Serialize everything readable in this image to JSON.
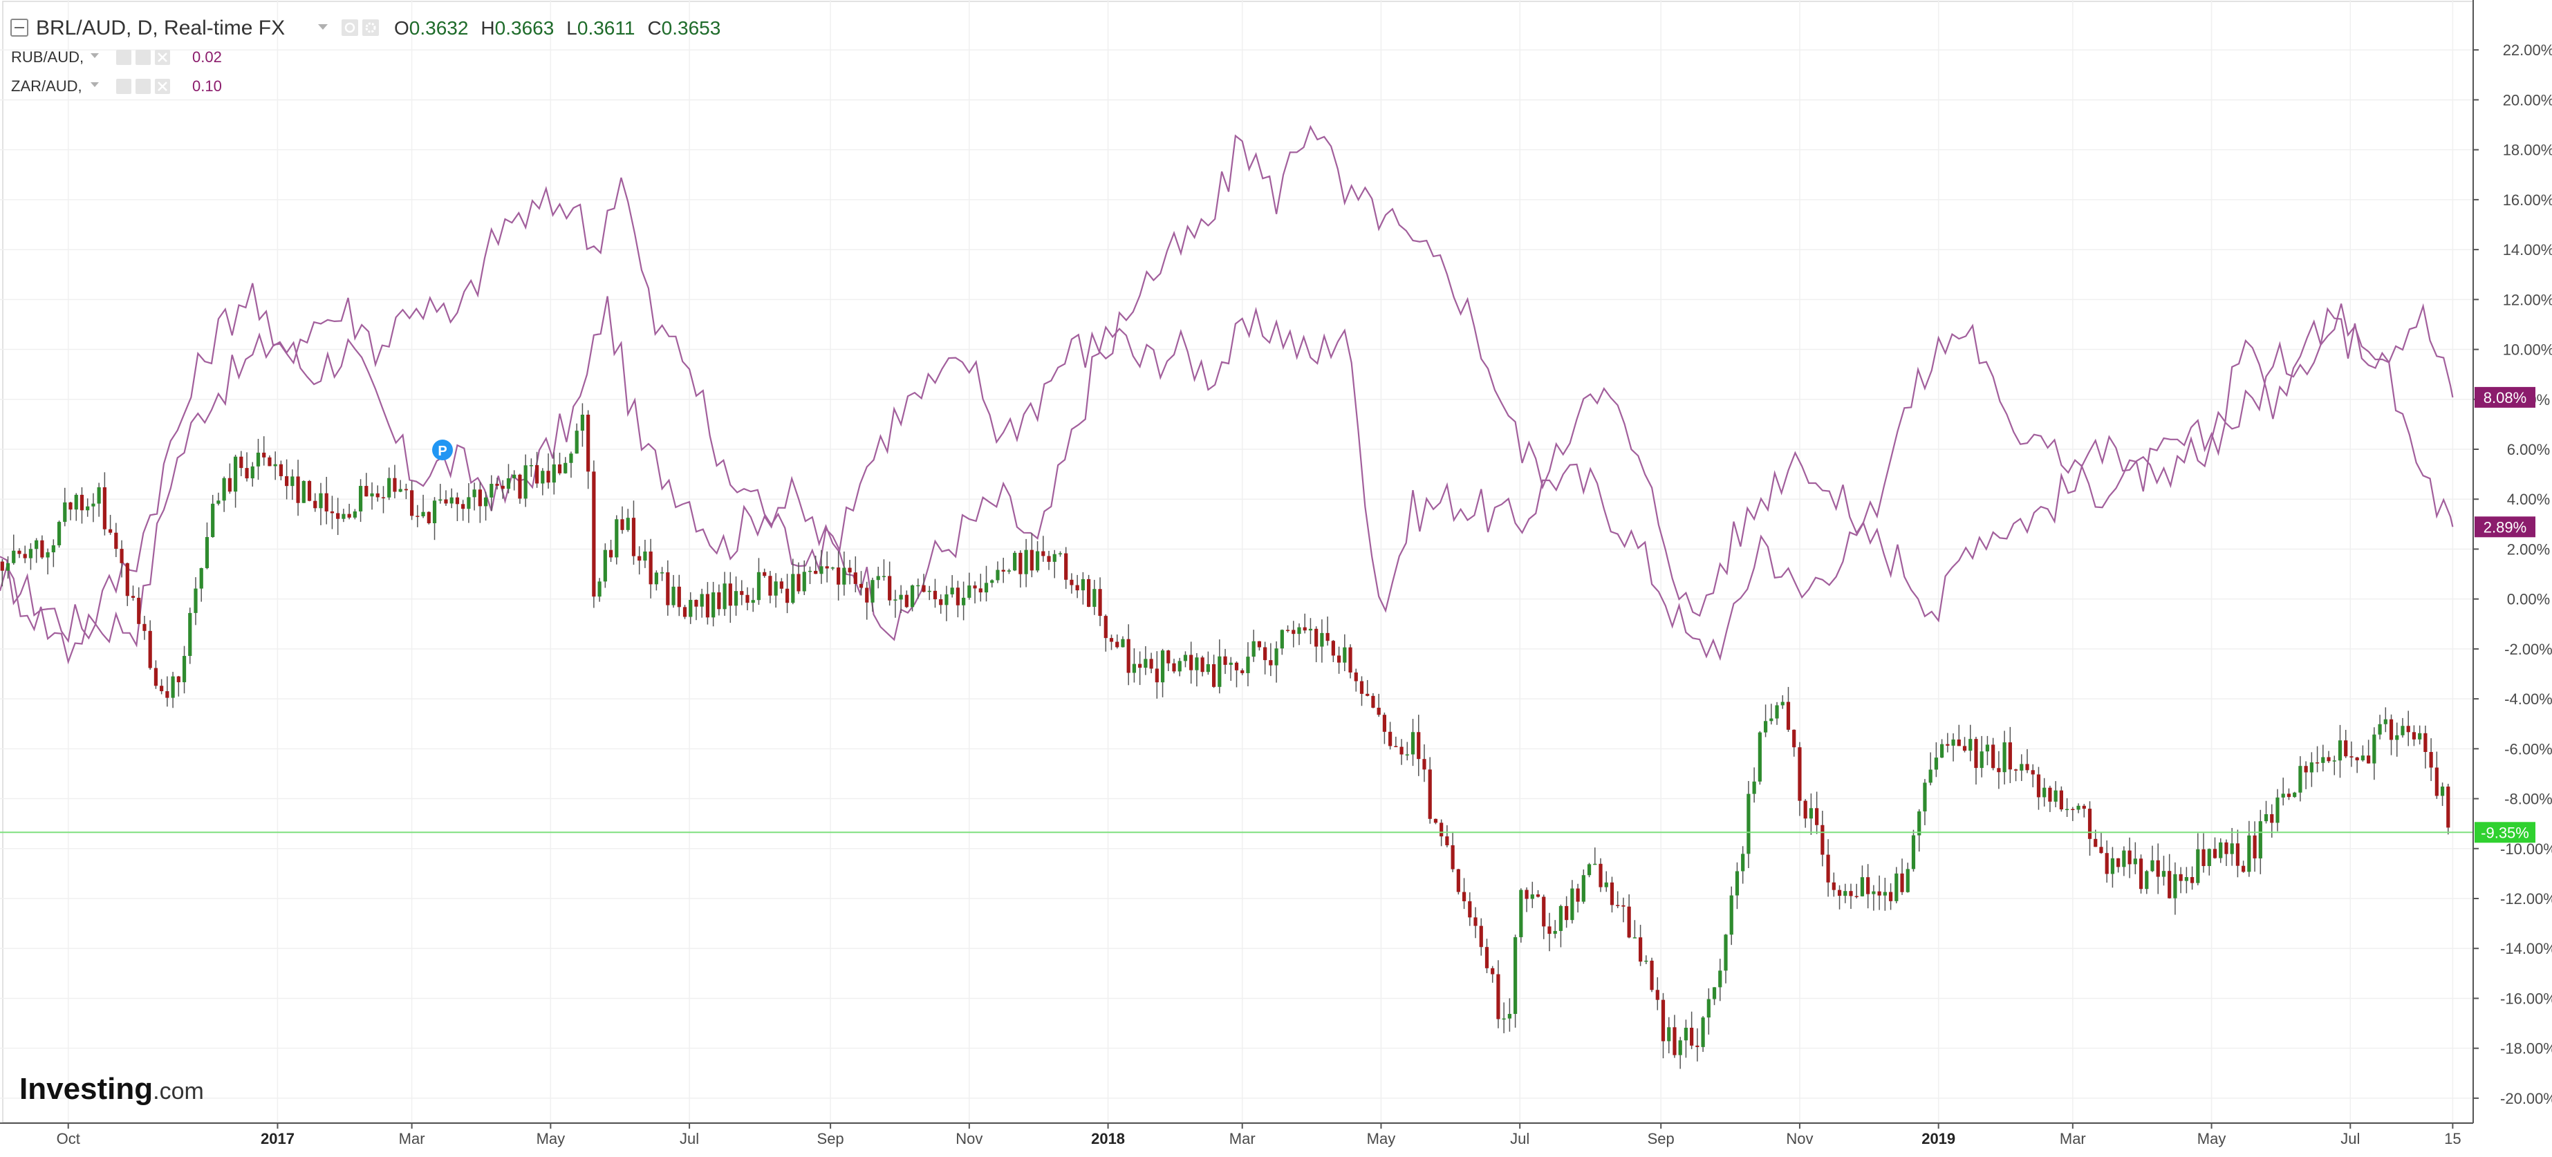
{
  "legend": {
    "main": {
      "symbol": "BRL/AUD, D, Real-time FX",
      "open_label": "O",
      "open": "0.3632",
      "high_label": "H",
      "high": "0.3663",
      "low_label": "L",
      "low": "0.3611",
      "close_label": "C",
      "close": "0.3653"
    },
    "compare": [
      {
        "symbol": "RUB/AUD,",
        "value": "0.02"
      },
      {
        "symbol": "ZAR/AUD,",
        "value": "0.10"
      }
    ]
  },
  "logo": {
    "bold": "Investing",
    "suffix": ".com"
  },
  "event_marker": {
    "label": "P"
  },
  "colors": {
    "up": "#2e8b2e",
    "down": "#a3191a",
    "wick": "#555555",
    "compare_line": "#a25f9c",
    "tag_compare": "#8b1c6c",
    "current_line": "#7fe07f",
    "tag_current": "#2fd12f",
    "marker": "#2196f3"
  },
  "chart_data": {
    "type": "line",
    "title": "BRL/AUD, D, Real-time FX",
    "y_unit": "%",
    "ylim": [
      -21,
      24
    ],
    "y_ticks": [
      "22.00%",
      "20.00%",
      "18.00%",
      "16.00%",
      "14.00%",
      "12.00%",
      "10.00%",
      "8.00%",
      "6.00%",
      "4.00%",
      "2.00%",
      "0.00%",
      "-2.00%",
      "-4.00%",
      "-6.00%",
      "-8.00%",
      "-10.00%",
      "-12.00%",
      "-14.00%",
      "-16.00%",
      "-18.00%",
      "-20.00%"
    ],
    "x_ticks": [
      {
        "label": "Oct",
        "date": "2016-10-01",
        "year": false
      },
      {
        "label": "2017",
        "date": "2017-01-01",
        "year": true
      },
      {
        "label": "Mar",
        "date": "2017-03-01",
        "year": false
      },
      {
        "label": "May",
        "date": "2017-05-01",
        "year": false
      },
      {
        "label": "Jul",
        "date": "2017-07-01",
        "year": false
      },
      {
        "label": "Sep",
        "date": "2017-09-01",
        "year": false
      },
      {
        "label": "Nov",
        "date": "2017-11-01",
        "year": false
      },
      {
        "label": "2018",
        "date": "2018-01-01",
        "year": true
      },
      {
        "label": "Mar",
        "date": "2018-03-01",
        "year": false
      },
      {
        "label": "May",
        "date": "2018-05-01",
        "year": false
      },
      {
        "label": "Jul",
        "date": "2018-07-01",
        "year": false
      },
      {
        "label": "Sep",
        "date": "2018-09-01",
        "year": false
      },
      {
        "label": "Nov",
        "date": "2018-11-01",
        "year": false
      },
      {
        "label": "2019",
        "date": "2019-01-01",
        "year": true
      },
      {
        "label": "Mar",
        "date": "2019-03-01",
        "year": false
      },
      {
        "label": "May",
        "date": "2019-05-01",
        "year": false
      },
      {
        "label": "Jul",
        "date": "2019-07-01",
        "year": false
      },
      {
        "label": "15",
        "date": "2019-08-15",
        "year": false
      }
    ],
    "x_range": [
      "2016-09-01",
      "2019-08-24"
    ],
    "grid": true,
    "current_value": {
      "value": -9.35,
      "label": "-9.35%"
    },
    "series": [
      {
        "name": "BRL/AUD",
        "style": "candlestick",
        "dates": [
          "2016-09-01",
          "2016-09-15",
          "2016-10-01",
          "2016-10-15",
          "2016-11-01",
          "2016-11-10",
          "2016-11-20",
          "2016-12-01",
          "2016-12-15",
          "2017-01-01",
          "2017-01-15",
          "2017-02-01",
          "2017-02-15",
          "2017-03-01",
          "2017-03-15",
          "2017-04-01",
          "2017-04-15",
          "2017-05-01",
          "2017-05-17",
          "2017-05-19",
          "2017-06-01",
          "2017-06-15",
          "2017-07-01",
          "2017-07-15",
          "2017-08-01",
          "2017-08-15",
          "2017-09-01",
          "2017-09-15",
          "2017-10-01",
          "2017-10-15",
          "2017-11-01",
          "2017-11-15",
          "2017-12-01",
          "2017-12-15",
          "2018-01-01",
          "2018-01-15",
          "2018-02-01",
          "2018-02-15",
          "2018-03-01",
          "2018-03-15",
          "2018-04-01",
          "2018-04-15",
          "2018-05-01",
          "2018-05-15",
          "2018-06-01",
          "2018-06-15",
          "2018-06-25",
          "2018-07-01",
          "2018-07-15",
          "2018-08-01",
          "2018-08-15",
          "2018-09-01",
          "2018-09-10",
          "2018-09-20",
          "2018-10-01",
          "2018-10-15",
          "2018-10-25",
          "2018-11-01",
          "2018-11-15",
          "2018-12-01",
          "2018-12-15",
          "2019-01-01",
          "2019-01-15",
          "2019-02-01",
          "2019-02-15",
          "2019-03-01",
          "2019-03-15",
          "2019-04-01",
          "2019-04-15",
          "2019-05-01",
          "2019-05-15",
          "2019-06-01",
          "2019-06-15",
          "2019-07-01",
          "2019-07-15",
          "2019-08-01",
          "2019-08-10",
          "2019-08-15"
        ],
        "values": [
          1.5,
          1.5,
          3.5,
          4.0,
          -1.0,
          -4.5,
          -3.0,
          3.0,
          5.5,
          5.5,
          4.0,
          3.5,
          4.5,
          4.0,
          3.5,
          4.0,
          4.5,
          5.0,
          7.5,
          0.5,
          3.0,
          1.0,
          -0.5,
          0.0,
          0.5,
          0.5,
          1.0,
          0.5,
          0.5,
          0.0,
          0.5,
          1.0,
          2.0,
          1.0,
          -1.0,
          -3.0,
          -2.5,
          -3.0,
          -2.5,
          -2.0,
          -1.5,
          -2.5,
          -5.5,
          -6.0,
          -11.0,
          -14.5,
          -17.5,
          -11.5,
          -13.0,
          -11.0,
          -12.0,
          -17.0,
          -18.0,
          -17.0,
          -13.0,
          -5.5,
          -4.0,
          -8.0,
          -11.0,
          -12.0,
          -11.5,
          -6.0,
          -6.0,
          -6.5,
          -7.5,
          -8.0,
          -10.5,
          -11.0,
          -11.5,
          -10.0,
          -10.5,
          -8.0,
          -6.0,
          -6.5,
          -5.5,
          -5.0,
          -8.0,
          -9.35
        ]
      },
      {
        "name": "RUB/AUD",
        "style": "line",
        "dates": [
          "2016-09-01",
          "2016-10-01",
          "2016-11-01",
          "2016-11-15",
          "2016-12-01",
          "2017-01-01",
          "2017-01-15",
          "2017-02-01",
          "2017-02-15",
          "2017-03-01",
          "2017-03-20",
          "2017-04-10",
          "2017-05-01",
          "2017-05-15",
          "2017-05-25",
          "2017-06-10",
          "2017-07-01",
          "2017-07-15",
          "2017-08-01",
          "2017-08-15",
          "2017-09-01",
          "2017-09-15",
          "2017-10-01",
          "2017-10-15",
          "2017-11-01",
          "2017-11-15",
          "2017-12-01",
          "2017-12-15",
          "2018-01-01",
          "2018-01-15",
          "2018-02-01",
          "2018-02-15",
          "2018-03-01",
          "2018-03-15",
          "2018-04-01",
          "2018-04-15",
          "2018-05-01",
          "2018-05-15",
          "2018-06-01",
          "2018-06-15",
          "2018-07-01",
          "2018-07-15",
          "2018-08-01",
          "2018-08-15",
          "2018-09-01",
          "2018-09-15",
          "2018-10-01",
          "2018-10-15",
          "2018-11-01",
          "2018-11-15",
          "2018-12-01",
          "2018-12-15",
          "2019-01-01",
          "2019-01-15",
          "2019-02-01",
          "2019-02-15",
          "2019-03-01",
          "2019-03-15",
          "2019-04-01",
          "2019-04-15",
          "2019-05-01",
          "2019-05-15",
          "2019-06-01",
          "2019-06-15",
          "2019-07-01",
          "2019-07-15",
          "2019-08-01",
          "2019-08-15"
        ],
        "values": [
          1.0,
          -1.0,
          -1.0,
          5.0,
          8.0,
          10.5,
          9.0,
          10.0,
          7.5,
          5.0,
          5.5,
          4.0,
          6.0,
          8.0,
          12.0,
          6.0,
          4.0,
          2.0,
          3.5,
          4.0,
          2.0,
          1.0,
          -1.5,
          1.5,
          3.0,
          4.0,
          2.0,
          6.0,
          11.0,
          9.5,
          10.0,
          9.0,
          10.5,
          11.0,
          9.5,
          11.0,
          -0.5,
          3.5,
          4.0,
          3.5,
          3.0,
          5.0,
          4.5,
          3.0,
          0.5,
          -2.0,
          -1.5,
          2.5,
          0.0,
          1.5,
          2.5,
          1.5,
          -0.5,
          2.5,
          3.0,
          3.5,
          4.5,
          4.5,
          5.0,
          6.0,
          6.5,
          7.5,
          9.5,
          10.0,
          11.5,
          10.0,
          11.5,
          8.08
        ]
      },
      {
        "name": "ZAR/AUD",
        "style": "line",
        "dates": [
          "2016-09-01",
          "2016-10-01",
          "2016-11-01",
          "2016-11-15",
          "2016-12-01",
          "2016-12-20",
          "2017-01-01",
          "2017-01-15",
          "2017-02-01",
          "2017-02-15",
          "2017-03-01",
          "2017-03-20",
          "2017-04-10",
          "2017-04-25",
          "2017-05-10",
          "2017-05-20",
          "2017-06-01",
          "2017-06-15",
          "2017-07-01",
          "2017-07-15",
          "2017-08-01",
          "2017-08-15",
          "2017-09-01",
          "2017-09-15",
          "2017-10-01",
          "2017-10-15",
          "2017-11-01",
          "2017-11-15",
          "2017-12-01",
          "2017-12-15",
          "2018-01-01",
          "2018-01-15",
          "2018-02-01",
          "2018-02-15",
          "2018-03-01",
          "2018-03-15",
          "2018-04-01",
          "2018-04-15",
          "2018-05-01",
          "2018-05-15",
          "2018-06-01",
          "2018-06-15",
          "2018-07-01",
          "2018-07-15",
          "2018-08-01",
          "2018-08-15",
          "2018-09-01",
          "2018-09-15",
          "2018-10-01",
          "2018-10-15",
          "2018-11-01",
          "2018-11-15",
          "2018-12-01",
          "2018-12-15",
          "2019-01-01",
          "2019-01-15",
          "2019-02-01",
          "2019-02-15",
          "2019-03-01",
          "2019-03-15",
          "2019-04-01",
          "2019-04-15",
          "2019-05-01",
          "2019-05-15",
          "2019-06-01",
          "2019-06-15",
          "2019-07-01",
          "2019-07-15",
          "2019-08-01",
          "2019-08-15"
        ],
        "values": [
          1.0,
          -2.0,
          2.0,
          6.0,
          10.0,
          12.5,
          9.5,
          11.0,
          11.5,
          10.0,
          12.0,
          11.0,
          15.0,
          15.5,
          16.0,
          14.0,
          17.0,
          11.0,
          9.5,
          5.0,
          4.0,
          2.0,
          2.0,
          5.0,
          7.5,
          8.5,
          9.5,
          6.5,
          8.0,
          10.0,
          10.0,
          12.5,
          14.0,
          15.0,
          18.5,
          16.0,
          19.5,
          16.0,
          15.5,
          14.0,
          13.0,
          10.0,
          6.0,
          5.0,
          9.0,
          7.0,
          3.0,
          -1.0,
          2.0,
          4.0,
          6.0,
          4.0,
          3.0,
          7.0,
          10.0,
          11.0,
          6.5,
          7.0,
          5.5,
          6.0,
          5.0,
          5.5,
          6.0,
          10.0,
          7.5,
          11.0,
          10.5,
          9.5,
          5.0,
          2.89
        ]
      }
    ]
  }
}
